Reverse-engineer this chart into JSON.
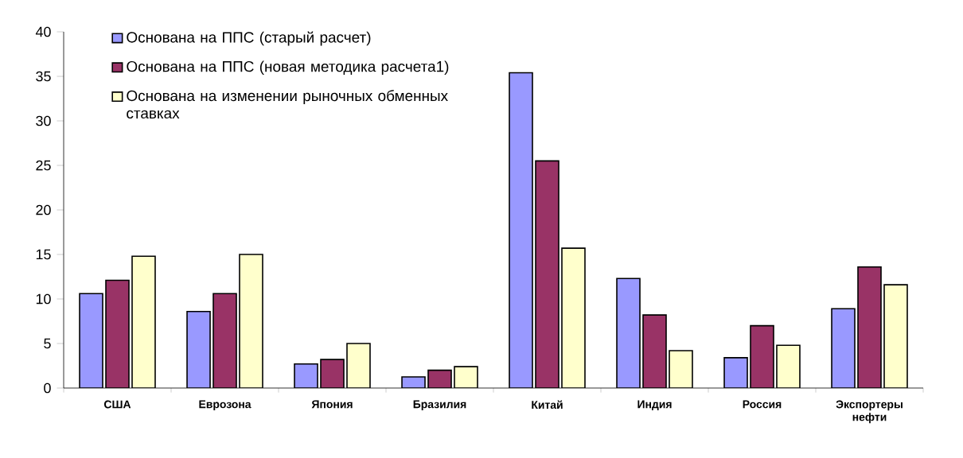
{
  "chart_data": {
    "type": "bar",
    "categories": [
      "США",
      "Еврозона",
      "Япония",
      "Бразилия",
      "Китай",
      "Индия",
      "Россия",
      "Экспортеры нефти"
    ],
    "series": [
      {
        "name": "Основана на ППС (старый расчет)",
        "color": "#9999ff",
        "values": [
          10.6,
          8.6,
          2.7,
          1.25,
          35.4,
          12.3,
          3.4,
          8.9
        ]
      },
      {
        "name": "Основана на ППС (новая методика расчета1)",
        "color": "#993366",
        "values": [
          12.1,
          10.6,
          3.2,
          2.0,
          25.5,
          8.2,
          7.0,
          13.6
        ]
      },
      {
        "name": "Основана на изменении рыночных обменных ставках",
        "color": "#ffffcc",
        "values": [
          14.8,
          15.0,
          5.0,
          2.4,
          15.7,
          4.2,
          4.8,
          11.6
        ]
      }
    ],
    "ylim": [
      0,
      40
    ],
    "yticks": [
      0,
      5,
      10,
      15,
      20,
      25,
      30,
      35,
      40
    ],
    "grid": false,
    "legend": "top left"
  }
}
